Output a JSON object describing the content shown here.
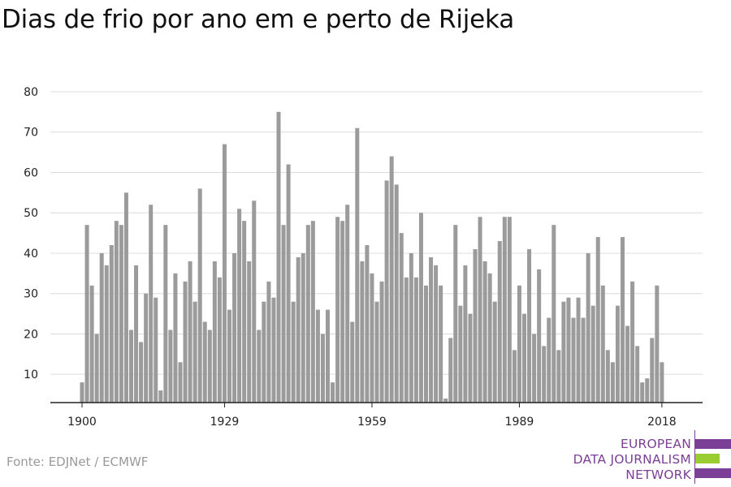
{
  "title": "Dias de frio por ano em e perto de Rijeka",
  "source": "Fonte: EDJNet / ECMWF",
  "logo": {
    "lines": [
      "EUROPEAN",
      "DATA JOURNALISM",
      "NETWORK"
    ],
    "colors": {
      "purple": "#7b3f97",
      "green": "#9acd32"
    }
  },
  "colors": {
    "bar": "#9b9b9b",
    "grid": "#dcdcdc",
    "axis": "#222222"
  },
  "chart_data": {
    "type": "bar",
    "title": "Dias de frio por ano em e perto de Rijeka",
    "xlabel": "",
    "ylabel": "",
    "ylim": [
      3,
      80
    ],
    "yticks": [
      10,
      20,
      30,
      40,
      50,
      60,
      70,
      80
    ],
    "xticks": [
      1900,
      1929,
      1959,
      1989,
      2018
    ],
    "grid": true,
    "x": [
      1900,
      1901,
      1902,
      1903,
      1904,
      1905,
      1906,
      1907,
      1908,
      1909,
      1910,
      1911,
      1912,
      1913,
      1914,
      1915,
      1916,
      1917,
      1918,
      1919,
      1920,
      1921,
      1922,
      1923,
      1924,
      1925,
      1926,
      1927,
      1928,
      1929,
      1930,
      1931,
      1932,
      1933,
      1934,
      1935,
      1936,
      1937,
      1938,
      1939,
      1940,
      1941,
      1942,
      1943,
      1944,
      1945,
      1946,
      1947,
      1948,
      1949,
      1950,
      1951,
      1952,
      1953,
      1954,
      1955,
      1956,
      1957,
      1958,
      1959,
      1960,
      1961,
      1962,
      1963,
      1964,
      1965,
      1966,
      1967,
      1968,
      1969,
      1970,
      1971,
      1972,
      1973,
      1974,
      1975,
      1976,
      1977,
      1978,
      1979,
      1980,
      1981,
      1982,
      1983,
      1984,
      1985,
      1986,
      1987,
      1988,
      1989,
      1990,
      1991,
      1992,
      1993,
      1994,
      1995,
      1996,
      1997,
      1998,
      1999,
      2000,
      2001,
      2002,
      2003,
      2004,
      2005,
      2006,
      2007,
      2008,
      2009,
      2010,
      2011,
      2012,
      2013,
      2014,
      2015,
      2016,
      2017,
      2018
    ],
    "values": [
      8,
      47,
      32,
      20,
      40,
      37,
      42,
      48,
      47,
      55,
      21,
      37,
      18,
      30,
      52,
      29,
      6,
      47,
      21,
      35,
      13,
      33,
      38,
      28,
      56,
      23,
      21,
      38,
      34,
      67,
      26,
      40,
      51,
      48,
      38,
      53,
      21,
      28,
      33,
      29,
      75,
      47,
      62,
      28,
      39,
      40,
      47,
      48,
      26,
      20,
      26,
      8,
      49,
      48,
      52,
      23,
      71,
      38,
      42,
      35,
      28,
      33,
      58,
      64,
      57,
      45,
      34,
      40,
      34,
      50,
      32,
      39,
      37,
      32,
      4,
      19,
      47,
      27,
      37,
      25,
      41,
      49,
      38,
      35,
      28,
      43,
      49,
      49,
      16,
      32,
      25,
      41,
      20,
      36,
      17,
      24,
      47,
      16,
      28,
      29,
      24,
      29,
      24,
      40,
      27,
      44,
      32,
      16,
      13,
      27,
      44,
      22,
      33,
      17,
      8,
      9,
      19,
      32,
      13
    ]
  }
}
